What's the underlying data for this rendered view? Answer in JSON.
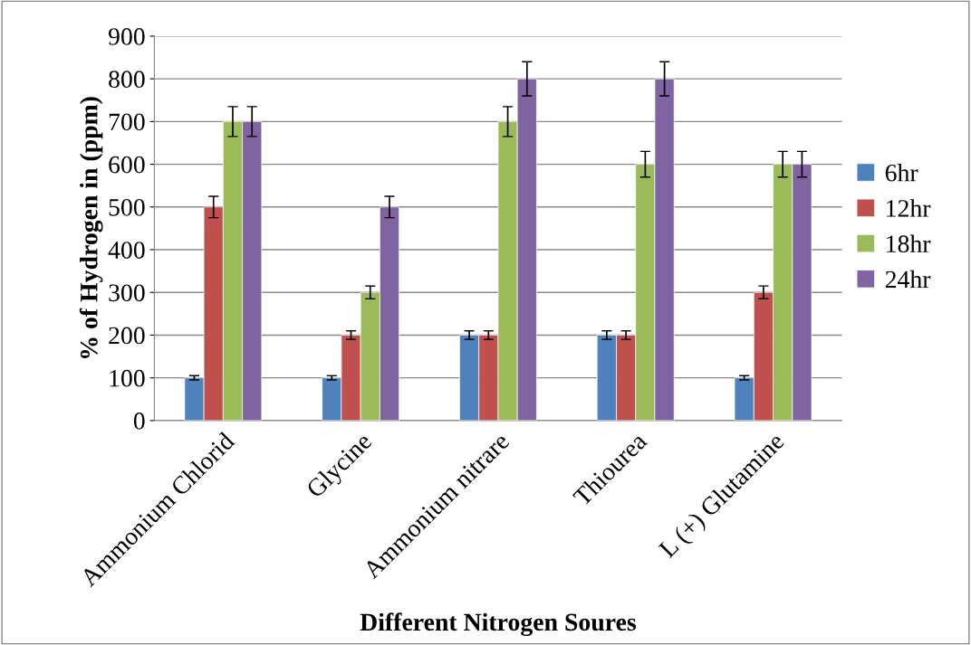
{
  "chart_data": {
    "type": "bar",
    "xlabel": "Different Nitrogen Soures",
    "ylabel": "% of Hydrogen in (ppm)",
    "categories": [
      "Ammonium Chlorid",
      "Glycine",
      "Ammonium nitrare",
      "Thiourea",
      "L (+) Glutamine"
    ],
    "series": [
      {
        "name": "6hr",
        "color": "#4f81bd",
        "values": [
          100,
          100,
          200,
          200,
          100
        ],
        "errors": [
          5,
          5,
          10,
          10,
          5
        ]
      },
      {
        "name": "12hr",
        "color": "#c0504d",
        "values": [
          500,
          200,
          200,
          200,
          300
        ],
        "errors": [
          25,
          10,
          10,
          10,
          15
        ]
      },
      {
        "name": "18hr",
        "color": "#9bbb59",
        "values": [
          700,
          300,
          700,
          600,
          600
        ],
        "errors": [
          35,
          15,
          35,
          30,
          30
        ]
      },
      {
        "name": "24hr",
        "color": "#8064a2",
        "values": [
          700,
          500,
          800,
          800,
          600
        ],
        "errors": [
          35,
          25,
          40,
          40,
          30
        ]
      }
    ],
    "ylim": [
      0,
      900
    ],
    "yticks": [
      0,
      100,
      200,
      300,
      400,
      500,
      600,
      700,
      800,
      900
    ],
    "grid": "y",
    "legend": "right"
  }
}
